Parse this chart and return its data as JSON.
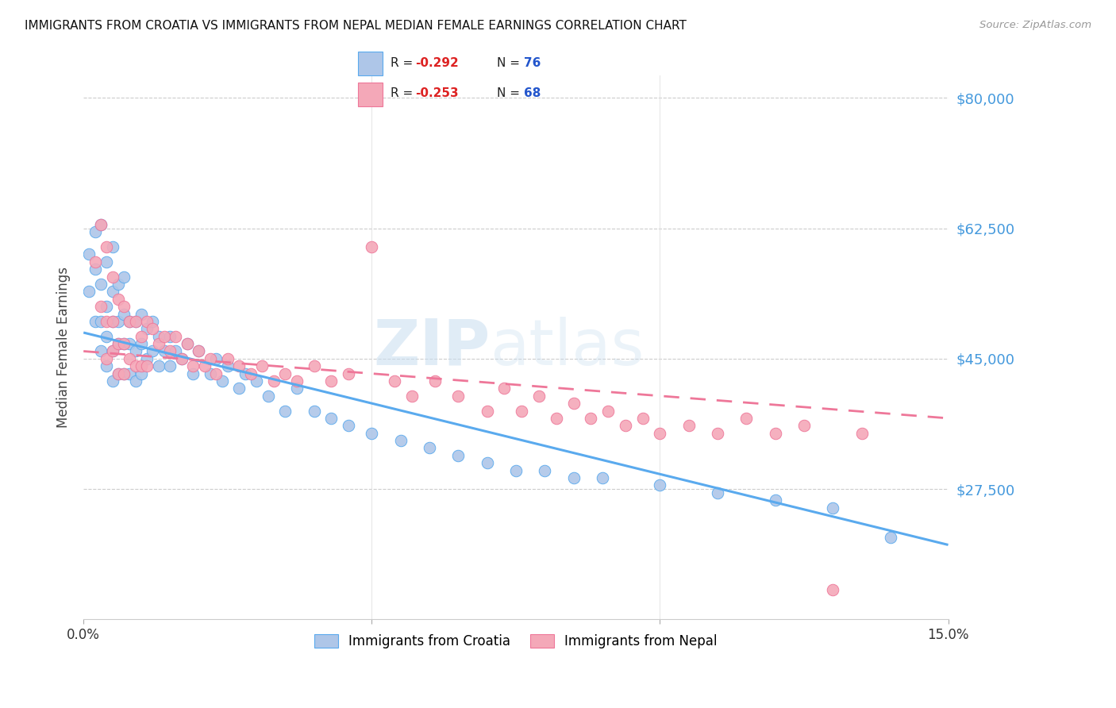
{
  "title": "IMMIGRANTS FROM CROATIA VS IMMIGRANTS FROM NEPAL MEDIAN FEMALE EARNINGS CORRELATION CHART",
  "source": "Source: ZipAtlas.com",
  "ylabel": "Median Female Earnings",
  "xlim": [
    0.0,
    0.15
  ],
  "ylim": [
    10000,
    83000
  ],
  "yticks": [
    27500,
    45000,
    62500,
    80000
  ],
  "ytick_labels": [
    "$27,500",
    "$45,000",
    "$62,500",
    "$80,000"
  ],
  "croatia_color": "#aec6e8",
  "nepal_color": "#f4a8b8",
  "croatia_line_color": "#5aaaee",
  "nepal_line_color": "#ee7799",
  "croatia_R": -0.292,
  "croatia_N": 76,
  "nepal_R": -0.253,
  "nepal_N": 68,
  "watermark_zip": "ZIP",
  "watermark_atlas": "atlas",
  "legend_R_color": "#dd2222",
  "legend_N_color": "#2255cc",
  "croatia_x": [
    0.001,
    0.001,
    0.002,
    0.002,
    0.002,
    0.003,
    0.003,
    0.003,
    0.003,
    0.004,
    0.004,
    0.004,
    0.004,
    0.005,
    0.005,
    0.005,
    0.005,
    0.005,
    0.006,
    0.006,
    0.006,
    0.006,
    0.007,
    0.007,
    0.007,
    0.007,
    0.008,
    0.008,
    0.008,
    0.009,
    0.009,
    0.009,
    0.01,
    0.01,
    0.01,
    0.011,
    0.011,
    0.012,
    0.012,
    0.013,
    0.013,
    0.014,
    0.015,
    0.015,
    0.016,
    0.017,
    0.018,
    0.019,
    0.02,
    0.022,
    0.023,
    0.024,
    0.025,
    0.027,
    0.028,
    0.03,
    0.032,
    0.035,
    0.037,
    0.04,
    0.043,
    0.046,
    0.05,
    0.055,
    0.06,
    0.065,
    0.07,
    0.075,
    0.08,
    0.085,
    0.09,
    0.1,
    0.11,
    0.12,
    0.13,
    0.14
  ],
  "croatia_y": [
    54000,
    59000,
    62000,
    57000,
    50000,
    63000,
    55000,
    50000,
    46000,
    58000,
    52000,
    48000,
    44000,
    60000,
    54000,
    50000,
    46000,
    42000,
    55000,
    50000,
    47000,
    43000,
    56000,
    51000,
    47000,
    43000,
    50000,
    47000,
    43000,
    50000,
    46000,
    42000,
    51000,
    47000,
    43000,
    49000,
    45000,
    50000,
    46000,
    48000,
    44000,
    46000,
    48000,
    44000,
    46000,
    45000,
    47000,
    43000,
    46000,
    43000,
    45000,
    42000,
    44000,
    41000,
    43000,
    42000,
    40000,
    38000,
    41000,
    38000,
    37000,
    36000,
    35000,
    34000,
    33000,
    32000,
    31000,
    30000,
    30000,
    29000,
    29000,
    28000,
    27000,
    26000,
    25000,
    21000
  ],
  "nepal_x": [
    0.002,
    0.003,
    0.003,
    0.004,
    0.004,
    0.004,
    0.005,
    0.005,
    0.005,
    0.006,
    0.006,
    0.006,
    0.007,
    0.007,
    0.007,
    0.008,
    0.008,
    0.009,
    0.009,
    0.01,
    0.01,
    0.011,
    0.011,
    0.012,
    0.013,
    0.014,
    0.015,
    0.016,
    0.017,
    0.018,
    0.019,
    0.02,
    0.021,
    0.022,
    0.023,
    0.025,
    0.027,
    0.029,
    0.031,
    0.033,
    0.035,
    0.037,
    0.04,
    0.043,
    0.046,
    0.05,
    0.054,
    0.057,
    0.061,
    0.065,
    0.07,
    0.073,
    0.076,
    0.079,
    0.082,
    0.085,
    0.088,
    0.091,
    0.094,
    0.097,
    0.1,
    0.105,
    0.11,
    0.115,
    0.12,
    0.125,
    0.13,
    0.135
  ],
  "nepal_y": [
    58000,
    63000,
    52000,
    60000,
    50000,
    45000,
    56000,
    50000,
    46000,
    53000,
    47000,
    43000,
    52000,
    47000,
    43000,
    50000,
    45000,
    50000,
    44000,
    48000,
    44000,
    50000,
    44000,
    49000,
    47000,
    48000,
    46000,
    48000,
    45000,
    47000,
    44000,
    46000,
    44000,
    45000,
    43000,
    45000,
    44000,
    43000,
    44000,
    42000,
    43000,
    42000,
    44000,
    42000,
    43000,
    60000,
    42000,
    40000,
    42000,
    40000,
    38000,
    41000,
    38000,
    40000,
    37000,
    39000,
    37000,
    38000,
    36000,
    37000,
    35000,
    36000,
    35000,
    37000,
    35000,
    36000,
    14000,
    35000
  ]
}
